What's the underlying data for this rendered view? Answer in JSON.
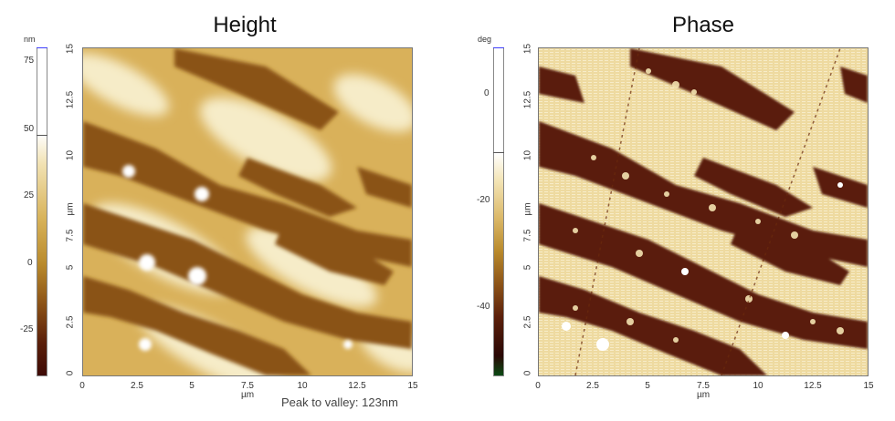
{
  "panels": {
    "height": {
      "title": "Height",
      "unit": "nm",
      "scale_ticks": [
        "75",
        "50",
        "25",
        "0",
        "-25"
      ],
      "y_ticks": [
        "15",
        "12.5",
        "10",
        "7.5",
        "5",
        "2.5",
        "0"
      ],
      "x_ticks": [
        "0",
        "2.5",
        "5",
        "7.5",
        "10",
        "12.5",
        "15"
      ],
      "y_label": "µm",
      "x_label": "µm",
      "colors": [
        "#ffffff",
        "#e9cf85",
        "#b98a2c",
        "#7b3b12",
        "#3e0a05"
      ]
    },
    "phase": {
      "title": "Phase",
      "unit": "deg",
      "scale_ticks": [
        "0",
        "-20",
        "-40"
      ],
      "y_ticks": [
        "15",
        "12.5",
        "10",
        "7.5",
        "5",
        "2.5",
        "0"
      ],
      "x_ticks": [
        "0",
        "2.5",
        "5",
        "7.5",
        "10",
        "12.5",
        "15"
      ],
      "y_label": "µm",
      "x_label": "µm",
      "colors": [
        "#ffffff",
        "#ebd28c",
        "#b98a2c",
        "#6a2a0d",
        "#2a0805",
        "#0b4a14"
      ]
    }
  },
  "footer": {
    "peak_to_valley": "Peak to valley: 123nm"
  }
}
